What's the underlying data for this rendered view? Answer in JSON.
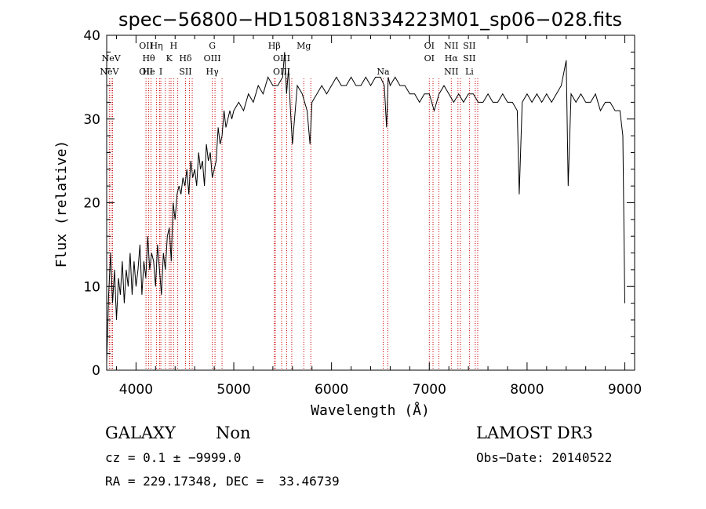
{
  "chart_data": {
    "type": "line",
    "title": "spec−56800−HD150818N334223M01_sp06−028.fits",
    "xlabel": "Wavelength (Å)",
    "ylabel": "Flux (relative)",
    "xlim": [
      3700,
      9100
    ],
    "ylim": [
      0,
      40
    ],
    "x_ticks": [
      4000,
      5000,
      6000,
      7000,
      8000,
      9000
    ],
    "y_ticks": [
      0,
      10,
      20,
      30,
      40
    ],
    "x_minor_step": 200,
    "y_minor_step": 2,
    "grid": false,
    "series": [
      {
        "x": [
          3700,
          3720,
          3740,
          3760,
          3780,
          3800,
          3820,
          3840,
          3860,
          3880,
          3900,
          3920,
          3940,
          3960,
          3980,
          4000,
          4020,
          4040,
          4060,
          4080,
          4100,
          4120,
          4140,
          4160,
          4180,
          4200,
          4220,
          4240,
          4260,
          4280,
          4300,
          4320,
          4340,
          4360,
          4380,
          4400,
          4420,
          4440,
          4460,
          4480,
          4500,
          4520,
          4540,
          4560,
          4580,
          4600,
          4620,
          4640,
          4660,
          4680,
          4700,
          4720,
          4740,
          4760,
          4780,
          4800,
          4820,
          4840,
          4860,
          4880,
          4900,
          4920,
          4940,
          4960,
          4980,
          5000,
          5050,
          5100,
          5150,
          5200,
          5250,
          5300,
          5350,
          5400,
          5450,
          5500,
          5520,
          5540,
          5560,
          5580,
          5600,
          5650,
          5700,
          5750,
          5780,
          5800,
          5850,
          5900,
          5950,
          6000,
          6050,
          6100,
          6150,
          6200,
          6250,
          6300,
          6350,
          6400,
          6450,
          6500,
          6540,
          6563,
          6580,
          6600,
          6650,
          6700,
          6750,
          6800,
          6850,
          6900,
          6950,
          7000,
          7050,
          7100,
          7150,
          7200,
          7250,
          7300,
          7350,
          7400,
          7450,
          7500,
          7550,
          7600,
          7650,
          7700,
          7750,
          7800,
          7850,
          7900,
          7920,
          7950,
          8000,
          8050,
          8100,
          8150,
          8200,
          8250,
          8300,
          8350,
          8400,
          8420,
          8450,
          8500,
          8550,
          8600,
          8650,
          8700,
          8750,
          8800,
          8850,
          8900,
          8950,
          8980,
          9000
        ],
        "y": [
          1,
          9,
          14,
          8,
          12,
          6,
          11,
          9,
          13,
          8,
          12,
          10,
          14,
          9,
          13,
          10,
          12,
          15,
          9,
          13,
          11,
          16,
          12,
          14,
          13,
          10,
          15,
          12,
          9,
          14,
          12,
          16,
          17,
          13,
          20,
          18,
          21,
          22,
          21,
          23,
          22,
          24,
          21,
          25,
          23,
          24,
          22,
          26,
          24,
          25,
          22,
          27,
          25,
          26,
          23,
          24,
          25,
          29,
          27,
          28,
          31,
          29,
          30,
          31,
          30,
          31,
          32,
          31,
          33,
          32,
          34,
          33,
          35,
          34,
          34,
          35,
          38,
          33,
          36,
          31,
          27,
          34,
          33,
          31,
          27,
          32,
          33,
          34,
          33,
          34,
          35,
          34,
          34,
          35,
          34,
          34,
          35,
          34,
          35,
          35,
          34,
          29,
          35,
          34,
          35,
          34,
          34,
          33,
          33,
          32,
          33,
          33,
          31,
          33,
          34,
          33,
          32,
          33,
          32,
          33,
          33,
          32,
          32,
          33,
          32,
          32,
          33,
          32,
          32,
          31,
          21,
          32,
          33,
          32,
          33,
          32,
          33,
          32,
          33,
          34,
          37,
          22,
          33,
          32,
          33,
          32,
          32,
          33,
          31,
          32,
          32,
          31,
          31,
          28,
          8
        ]
      }
    ],
    "lines": [
      {
        "w": 3727,
        "labels": [
          "NeV"
        ],
        "row": [
          3
        ]
      },
      {
        "w": 3746,
        "labels": [
          "NeV"
        ],
        "row": [
          2
        ]
      },
      {
        "w": 4102,
        "labels": [
          "OII",
          "OII"
        ],
        "row": [
          1,
          3
        ]
      },
      {
        "w": 4130,
        "labels": [
          "Hθ",
          "He"
        ],
        "row": [
          2,
          3
        ]
      },
      {
        "w": 4210,
        "labels": [
          "Hη"
        ],
        "row": [
          1
        ]
      },
      {
        "w": 4254,
        "labels": [
          "I"
        ],
        "row": [
          3
        ]
      },
      {
        "w": 4340,
        "labels": [
          "K"
        ],
        "row": [
          2
        ]
      },
      {
        "w": 4385,
        "labels": [
          "H"
        ],
        "row": [
          1
        ]
      },
      {
        "w": 4506,
        "labels": [
          "Hδ",
          "SII"
        ],
        "row": [
          2,
          3
        ]
      },
      {
        "w": 4780,
        "labels": [
          "G",
          "OIII",
          "Hγ"
        ],
        "row": [
          1,
          2,
          3
        ]
      },
      {
        "w": 5415,
        "labels": [
          "Hβ"
        ],
        "row": [
          1
        ]
      },
      {
        "w": 5490,
        "labels": [
          "OIII",
          "OIII"
        ],
        "row": [
          2,
          3
        ]
      },
      {
        "w": 5716,
        "labels": [
          "Mg"
        ],
        "row": [
          1
        ]
      },
      {
        "w": 6528,
        "labels": [
          "Na"
        ],
        "row": [
          3
        ]
      },
      {
        "w": 7000,
        "labels": [
          "OI",
          "OI"
        ],
        "row": [
          1,
          2
        ]
      },
      {
        "w": 7225,
        "labels": [
          "NII",
          "Hα",
          "NII"
        ],
        "row": [
          1,
          2,
          3
        ]
      },
      {
        "w": 7410,
        "labels": [
          "SII",
          "SII",
          "Li"
        ],
        "row": [
          1,
          2,
          3
        ]
      }
    ],
    "marker_lines_w": [
      3760,
      4153,
      4242,
      4300,
      4358,
      4427,
      4547,
      4575,
      4808,
      4880,
      5425,
      5541,
      5593,
      5788,
      6575,
      7038,
      7097,
      7293,
      7318,
      7470,
      7495
    ]
  },
  "info": {
    "object_class": "GALAXY",
    "subclass": "Non",
    "survey": "LAMOST DR3",
    "cz": "cz = 0.1 ± −9999.0",
    "obs_date": "Obs−Date: 20140522",
    "coords": "RA = 229.17348, DEC =  33.46739"
  },
  "colors": {
    "spectrum": "#000000",
    "marker_line": "#cc0000",
    "axis": "#000000"
  }
}
